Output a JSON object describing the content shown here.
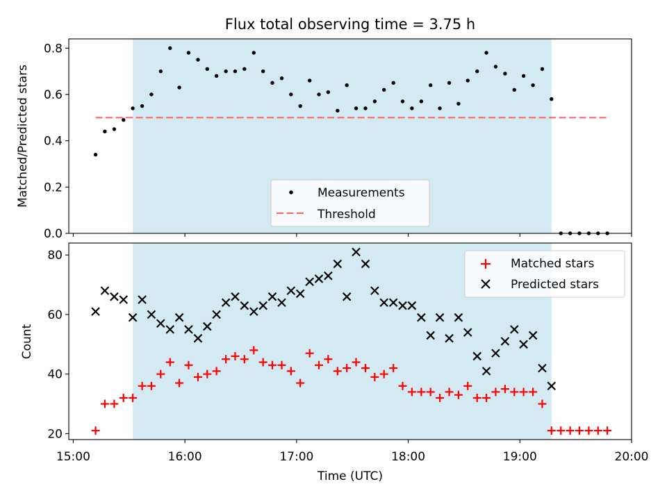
{
  "chart_data": [
    {
      "type": "scatter",
      "title": "Flux total observing time = 3.75 h",
      "xlabel": "",
      "ylabel": "Matched/Predicted stars",
      "xlim_hours": [
        14.96,
        20.0
      ],
      "ylim": [
        0,
        0.84
      ],
      "yticks": [
        0.0,
        0.2,
        0.4,
        0.6,
        0.8
      ],
      "ytick_labels": [
        "0.0",
        "0.2",
        "0.4",
        "0.6",
        "0.8"
      ],
      "shaded_window_hours": [
        15.533,
        19.283
      ],
      "series": [
        {
          "name": "Measurements",
          "color": "#000000",
          "marker": "dot",
          "x_hours": [
            15.2,
            15.283,
            15.367,
            15.45,
            15.533,
            15.617,
            15.7,
            15.783,
            15.867,
            15.95,
            16.033,
            16.117,
            16.2,
            16.283,
            16.367,
            16.45,
            16.533,
            16.617,
            16.7,
            16.783,
            16.867,
            16.95,
            17.033,
            17.117,
            17.2,
            17.283,
            17.367,
            17.45,
            17.533,
            17.617,
            17.7,
            17.783,
            17.867,
            17.95,
            18.033,
            18.117,
            18.2,
            18.283,
            18.367,
            18.45,
            18.533,
            18.617,
            18.7,
            18.783,
            18.867,
            18.95,
            19.033,
            19.117,
            19.2,
            19.283,
            19.367,
            19.45,
            19.533,
            19.617,
            19.7,
            19.783
          ],
          "y": [
            0.34,
            0.44,
            0.45,
            0.49,
            0.54,
            0.55,
            0.6,
            0.7,
            0.8,
            0.63,
            0.78,
            0.75,
            0.71,
            0.68,
            0.7,
            0.7,
            0.71,
            0.78,
            0.7,
            0.65,
            0.67,
            0.6,
            0.55,
            0.66,
            0.6,
            0.61,
            0.53,
            0.64,
            0.54,
            0.54,
            0.57,
            0.62,
            0.65,
            0.57,
            0.54,
            0.57,
            0.64,
            0.54,
            0.65,
            0.56,
            0.66,
            0.7,
            0.78,
            0.72,
            0.69,
            0.62,
            0.68,
            0.64,
            0.71,
            0.58,
            0,
            0,
            0,
            0,
            0,
            0
          ]
        },
        {
          "name": "Threshold",
          "color": "#ff6666",
          "style": "dashed",
          "x_hours": [
            15.2,
            19.783
          ],
          "y": [
            0.5,
            0.5
          ]
        }
      ],
      "legend": {
        "placement": "lower-center",
        "entries": [
          "Measurements",
          "Threshold"
        ]
      }
    },
    {
      "type": "scatter",
      "title": "",
      "xlabel": "Time (UTC)",
      "ylabel": "Count",
      "xlim_hours": [
        14.96,
        20.0
      ],
      "ylim": [
        18,
        84
      ],
      "yticks": [
        20,
        40,
        60,
        80
      ],
      "ytick_labels": [
        "20",
        "40",
        "60",
        "80"
      ],
      "xticks_hours": [
        15,
        16,
        17,
        18,
        19,
        20
      ],
      "xtick_labels": [
        "15:00",
        "16:00",
        "17:00",
        "18:00",
        "19:00",
        "20:00"
      ],
      "shaded_window_hours": [
        15.533,
        19.283
      ],
      "series": [
        {
          "name": "Matched stars",
          "color": "#ff0000",
          "marker": "plus",
          "x_hours": [
            15.2,
            15.283,
            15.367,
            15.45,
            15.533,
            15.617,
            15.7,
            15.783,
            15.867,
            15.95,
            16.033,
            16.117,
            16.2,
            16.283,
            16.367,
            16.45,
            16.533,
            16.617,
            16.7,
            16.783,
            16.867,
            16.95,
            17.033,
            17.117,
            17.2,
            17.283,
            17.367,
            17.45,
            17.533,
            17.617,
            17.7,
            17.783,
            17.867,
            17.95,
            18.033,
            18.117,
            18.2,
            18.283,
            18.367,
            18.45,
            18.533,
            18.617,
            18.7,
            18.783,
            18.867,
            18.95,
            19.033,
            19.117,
            19.2,
            19.283,
            19.367,
            19.45,
            19.533,
            19.617,
            19.7,
            19.783
          ],
          "y": [
            21,
            30,
            30,
            32,
            32,
            36,
            36,
            40,
            44,
            37,
            43,
            39,
            40,
            41,
            45,
            46,
            45,
            48,
            44,
            43,
            43,
            41,
            37,
            47,
            43,
            45,
            41,
            42,
            44,
            42,
            39,
            40,
            42,
            36,
            34,
            34,
            34,
            32,
            34,
            33,
            36,
            32,
            32,
            34,
            35,
            34,
            34,
            34,
            30,
            21,
            21,
            21,
            21,
            21,
            21,
            21
          ]
        },
        {
          "name": "Predicted stars",
          "color": "#000000",
          "marker": "x",
          "x_hours": [
            15.2,
            15.283,
            15.367,
            15.45,
            15.533,
            15.617,
            15.7,
            15.783,
            15.867,
            15.95,
            16.033,
            16.117,
            16.2,
            16.283,
            16.367,
            16.45,
            16.533,
            16.617,
            16.7,
            16.783,
            16.867,
            16.95,
            17.033,
            17.117,
            17.2,
            17.283,
            17.367,
            17.45,
            17.533,
            17.617,
            17.7,
            17.783,
            17.867,
            17.95,
            18.033,
            18.117,
            18.2,
            18.283,
            18.367,
            18.45,
            18.533,
            18.617,
            18.7,
            18.783,
            18.867,
            18.95,
            19.033,
            19.117,
            19.2,
            19.283
          ],
          "y": [
            61,
            68,
            66,
            65,
            59,
            65,
            60,
            57,
            55,
            59,
            55,
            52,
            56,
            60,
            64,
            66,
            63,
            61,
            63,
            66,
            64,
            68,
            67,
            71,
            72,
            73,
            77,
            66,
            81,
            77,
            68,
            64,
            64,
            63,
            63,
            59,
            53,
            59,
            52,
            59,
            54,
            46,
            41,
            47,
            51,
            55,
            50,
            53,
            42,
            36
          ]
        }
      ],
      "legend": {
        "placement": "top-right",
        "entries": [
          "Matched stars",
          "Predicted stars"
        ]
      }
    }
  ]
}
